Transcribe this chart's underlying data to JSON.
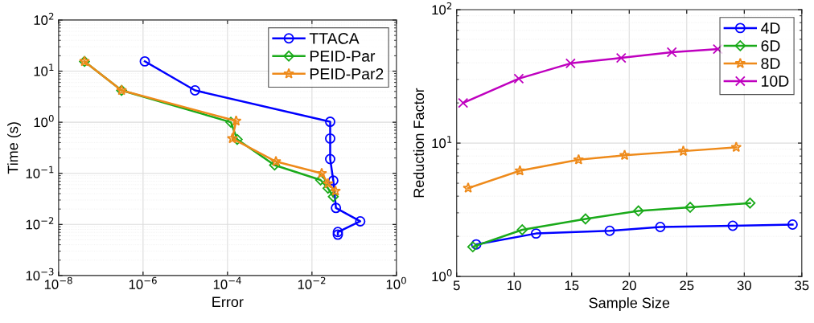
{
  "chart_data": [
    {
      "type": "line",
      "xlabel": "Error",
      "ylabel": "Time (s)",
      "log": "xy",
      "grid": true,
      "legend": "top right",
      "line_style": "solid",
      "xlim": [
        1e-08,
        1
      ],
      "ylim": [
        0.001,
        100
      ],
      "xticks": [
        {
          "value": 1e-08,
          "label": "10$^{−8}$"
        },
        {
          "value": 1e-06,
          "label": "10$^{−6}$"
        },
        {
          "value": 0.0001,
          "label": "10$^{−4}$"
        },
        {
          "value": 0.01,
          "label": "10$^{−2}$"
        },
        {
          "value": 1,
          "label": "10$^{0}$"
        }
      ],
      "yticks": [
        {
          "value": 0.001,
          "label": "10$^{−3}$"
        },
        {
          "value": 0.01,
          "label": "10$^{−2}$"
        },
        {
          "value": 0.1,
          "label": "10$^{−1}$"
        },
        {
          "value": 1,
          "label": "10$^{0}$"
        },
        {
          "value": 10,
          "label": "10$^{1}$"
        },
        {
          "value": 100,
          "label": "10$^{2}$"
        }
      ],
      "series": [
        {
          "name": "TTACA",
          "color": "#0000ff",
          "marker": "circle",
          "x": [
            1.1e-06,
            1.7e-05,
            0.027,
            0.027,
            0.027,
            0.032,
            0.037,
            0.139,
            0.041,
            0.041
          ],
          "values": [
            15.5,
            4.2,
            1.02,
            0.48,
            0.19,
            0.072,
            0.021,
            0.0115,
            0.0071,
            0.0063
          ]
        },
        {
          "name": "PEID-Par",
          "color": "#1aaa1a",
          "marker": "diamond",
          "x": [
            4.1e-08,
            3.1e-07,
            0.00012,
            0.00017,
            0.0013,
            0.016,
            0.024,
            0.032
          ],
          "values": [
            15.5,
            4.2,
            1.0,
            0.46,
            0.145,
            0.074,
            0.051,
            0.035
          ]
        },
        {
          "name": "PEID-Par2",
          "color": "#ee8a1a",
          "marker": "star",
          "x": [
            4.1e-08,
            3.1e-07,
            0.00016,
            0.00013,
            0.0014,
            0.017,
            0.024,
            0.036
          ],
          "values": [
            15.5,
            4.2,
            1.06,
            0.48,
            0.17,
            0.1,
            0.063,
            0.045
          ]
        }
      ]
    },
    {
      "type": "line",
      "xlabel": "Sample Size",
      "ylabel": "Reduction Factor",
      "log": "y",
      "grid": true,
      "legend": "top right",
      "line_style": "solid",
      "xlim": [
        5,
        35
      ],
      "ylim": [
        1,
        100
      ],
      "xticks": [
        5,
        10,
        15,
        20,
        25,
        30,
        35
      ],
      "yticks": [
        {
          "value": 1,
          "label": "10$^{0}$"
        },
        {
          "value": 10,
          "label": "10$^{1}$"
        },
        {
          "value": 100,
          "label": "10$^{2}$"
        }
      ],
      "series": [
        {
          "name": "4D",
          "color": "#0000ff",
          "marker": "circle",
          "x": [
            6.7,
            11.9,
            18.3,
            22.7,
            29.0,
            34.2
          ],
          "values": [
            1.74,
            2.1,
            2.2,
            2.35,
            2.4,
            2.45
          ]
        },
        {
          "name": "6D",
          "color": "#1aaa1a",
          "marker": "diamond",
          "x": [
            6.4,
            10.7,
            16.2,
            20.8,
            25.3,
            30.5
          ],
          "values": [
            1.67,
            2.24,
            2.7,
            3.1,
            3.3,
            3.55
          ]
        },
        {
          "name": "8D",
          "color": "#ee8a1a",
          "marker": "star",
          "x": [
            6.0,
            10.5,
            15.6,
            19.6,
            24.7,
            29.3
          ],
          "values": [
            4.6,
            6.2,
            7.5,
            8.1,
            8.7,
            9.3
          ]
        },
        {
          "name": "10D",
          "color": "#bf00bf",
          "marker": "cross",
          "x": [
            5.56,
            10.4,
            14.9,
            19.3,
            23.7,
            27.7
          ],
          "values": [
            20,
            30.4,
            39.6,
            43.5,
            48,
            50.6
          ]
        }
      ]
    }
  ]
}
